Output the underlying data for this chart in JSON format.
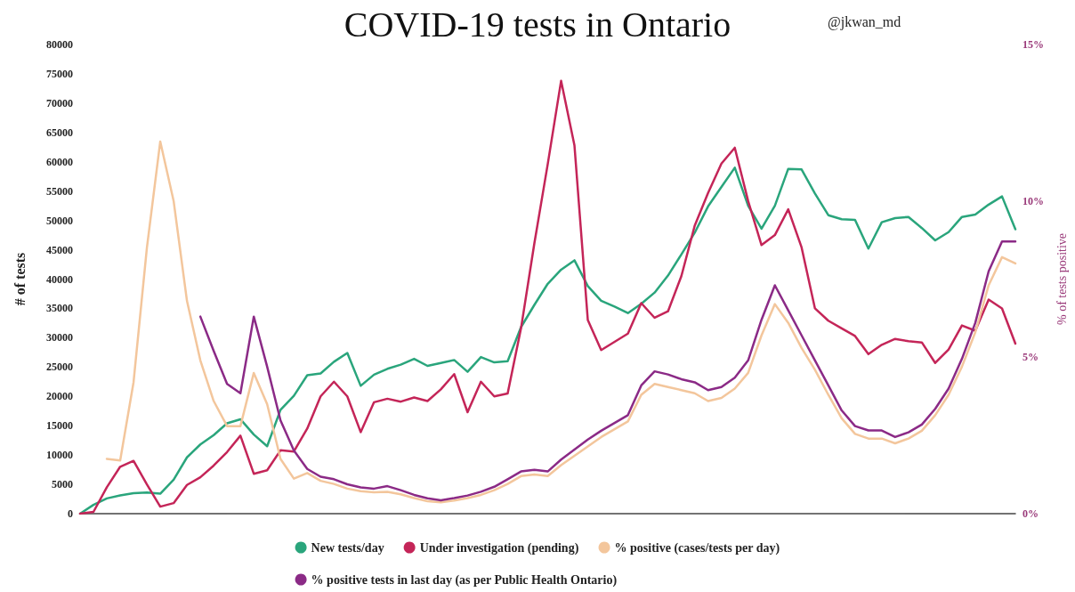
{
  "chart_data": {
    "type": "line",
    "title": "COVID-19 tests in Ontario",
    "ylabel": "# of tests",
    "y2label": "% of tests positive",
    "annotations": [
      "@jkwan_md"
    ],
    "categories": [
      null,
      null,
      null,
      null,
      null,
      null,
      null,
      null,
      null,
      null,
      null,
      null,
      null,
      null,
      null,
      null,
      null,
      null,
      null,
      null,
      null,
      null,
      null,
      null,
      null,
      null,
      null,
      null,
      null,
      null,
      null,
      null,
      null,
      null,
      null,
      null,
      null,
      null,
      null,
      null,
      null,
      null,
      null,
      null,
      null,
      null,
      null,
      null,
      null,
      null,
      null,
      null,
      null,
      null,
      null,
      null,
      null,
      null,
      null,
      null,
      null,
      null,
      null,
      null,
      null,
      null,
      null,
      null,
      null,
      null,
      null
    ],
    "series": [
      {
        "name": "New tests/day",
        "color": "#2aa57c",
        "values": [
          0,
          1500,
          2600,
          3100,
          3500,
          3600,
          3400,
          5800,
          9600,
          11800,
          13400,
          15400,
          16100,
          13500,
          11500,
          17700,
          20100,
          23600,
          23900,
          25900,
          27400,
          21800,
          23700,
          24700,
          25400,
          26400,
          25200,
          25700,
          26200,
          24200,
          26700,
          25800,
          26000,
          31800,
          35600,
          39200,
          41600,
          43200,
          38800,
          36300,
          35300,
          34200,
          35800,
          37700,
          40600,
          44200,
          47900,
          52400,
          55700,
          59000,
          52500,
          48600,
          52500,
          58800,
          58700,
          54600,
          50900,
          50200,
          50100,
          45200,
          49700,
          50400,
          50600,
          48700,
          46600,
          48000,
          50600,
          51000,
          52700,
          54100,
          48500
        ]
      },
      {
        "name": "Under investigation (pending)",
        "color": "#c42558",
        "values": [
          0,
          300,
          4500,
          8000,
          9000,
          5000,
          1200,
          1800,
          4900,
          6200,
          8200,
          10500,
          13300,
          6800,
          7400,
          10800,
          10600,
          14500,
          20000,
          22500,
          20000,
          13900,
          19000,
          19600,
          19100,
          19800,
          19200,
          21200,
          23800,
          17300,
          22500,
          20000,
          20500,
          31600,
          46100,
          59600,
          73800,
          62800,
          33000,
          27900,
          29300,
          30700,
          35900,
          33400,
          34500,
          40500,
          49100,
          54700,
          59700,
          62400,
          53300,
          45800,
          47500,
          51900,
          45400,
          35000,
          32900,
          31600,
          30300,
          27200,
          28800,
          29800,
          29400,
          29200,
          25700,
          28000,
          32100,
          31200,
          36500,
          35000,
          29000
        ]
      },
      {
        "name": "% positive (cases/tests per day)",
        "color": "#f3c69c",
        "axis": "y2",
        "values": [
          null,
          null,
          1.75,
          1.7,
          4.2,
          8.5,
          11.9,
          10.0,
          6.8,
          4.9,
          3.6,
          2.8,
          2.8,
          4.5,
          3.5,
          1.75,
          1.12,
          1.3,
          1.05,
          0.95,
          0.8,
          0.72,
          0.68,
          0.7,
          0.62,
          0.5,
          0.4,
          0.36,
          0.42,
          0.5,
          0.6,
          0.75,
          0.95,
          1.2,
          1.25,
          1.2,
          1.55,
          1.85,
          2.15,
          2.45,
          2.7,
          2.95,
          3.8,
          4.15,
          4.05,
          3.95,
          3.85,
          3.6,
          3.7,
          4.0,
          4.5,
          5.7,
          6.7,
          6.1,
          5.3,
          4.6,
          3.8,
          3.05,
          2.55,
          2.4,
          2.4,
          2.25,
          2.4,
          2.65,
          3.15,
          3.8,
          4.7,
          5.8,
          7.3,
          8.2,
          8.0
        ]
      },
      {
        "name": "% positive tests in last day (as per Public Health Ontario)",
        "color": "#8b2a86",
        "axis": "y2",
        "values": [
          null,
          null,
          null,
          null,
          null,
          null,
          null,
          null,
          null,
          6.3,
          5.2,
          4.15,
          3.85,
          6.3,
          4.7,
          2.98,
          2.02,
          1.43,
          1.18,
          1.1,
          0.94,
          0.84,
          0.8,
          0.88,
          0.75,
          0.6,
          0.49,
          0.43,
          0.5,
          0.58,
          0.7,
          0.86,
          1.1,
          1.35,
          1.4,
          1.35,
          1.73,
          2.05,
          2.37,
          2.65,
          2.9,
          3.15,
          4.1,
          4.55,
          4.45,
          4.3,
          4.2,
          3.95,
          4.05,
          4.35,
          4.9,
          6.2,
          7.3,
          6.5,
          5.7,
          4.9,
          4.1,
          3.3,
          2.8,
          2.66,
          2.66,
          2.45,
          2.6,
          2.85,
          3.35,
          4.0,
          4.95,
          6.1,
          7.75,
          8.7,
          8.7
        ]
      }
    ],
    "ylim": [
      0,
      80000
    ],
    "yticks": [
      0,
      5000,
      10000,
      15000,
      20000,
      25000,
      30000,
      35000,
      40000,
      45000,
      50000,
      55000,
      60000,
      65000,
      70000,
      75000,
      80000
    ],
    "y2lim": [
      0,
      15
    ],
    "y2ticks": [
      {
        "value": 0,
        "label": "0%"
      },
      {
        "value": 5,
        "label": "5%"
      },
      {
        "value": 10,
        "label": "10%"
      },
      {
        "value": 15,
        "label": "15%"
      }
    ],
    "marker": "none",
    "line_style": "solid",
    "grid": false,
    "legend": "bottom"
  }
}
